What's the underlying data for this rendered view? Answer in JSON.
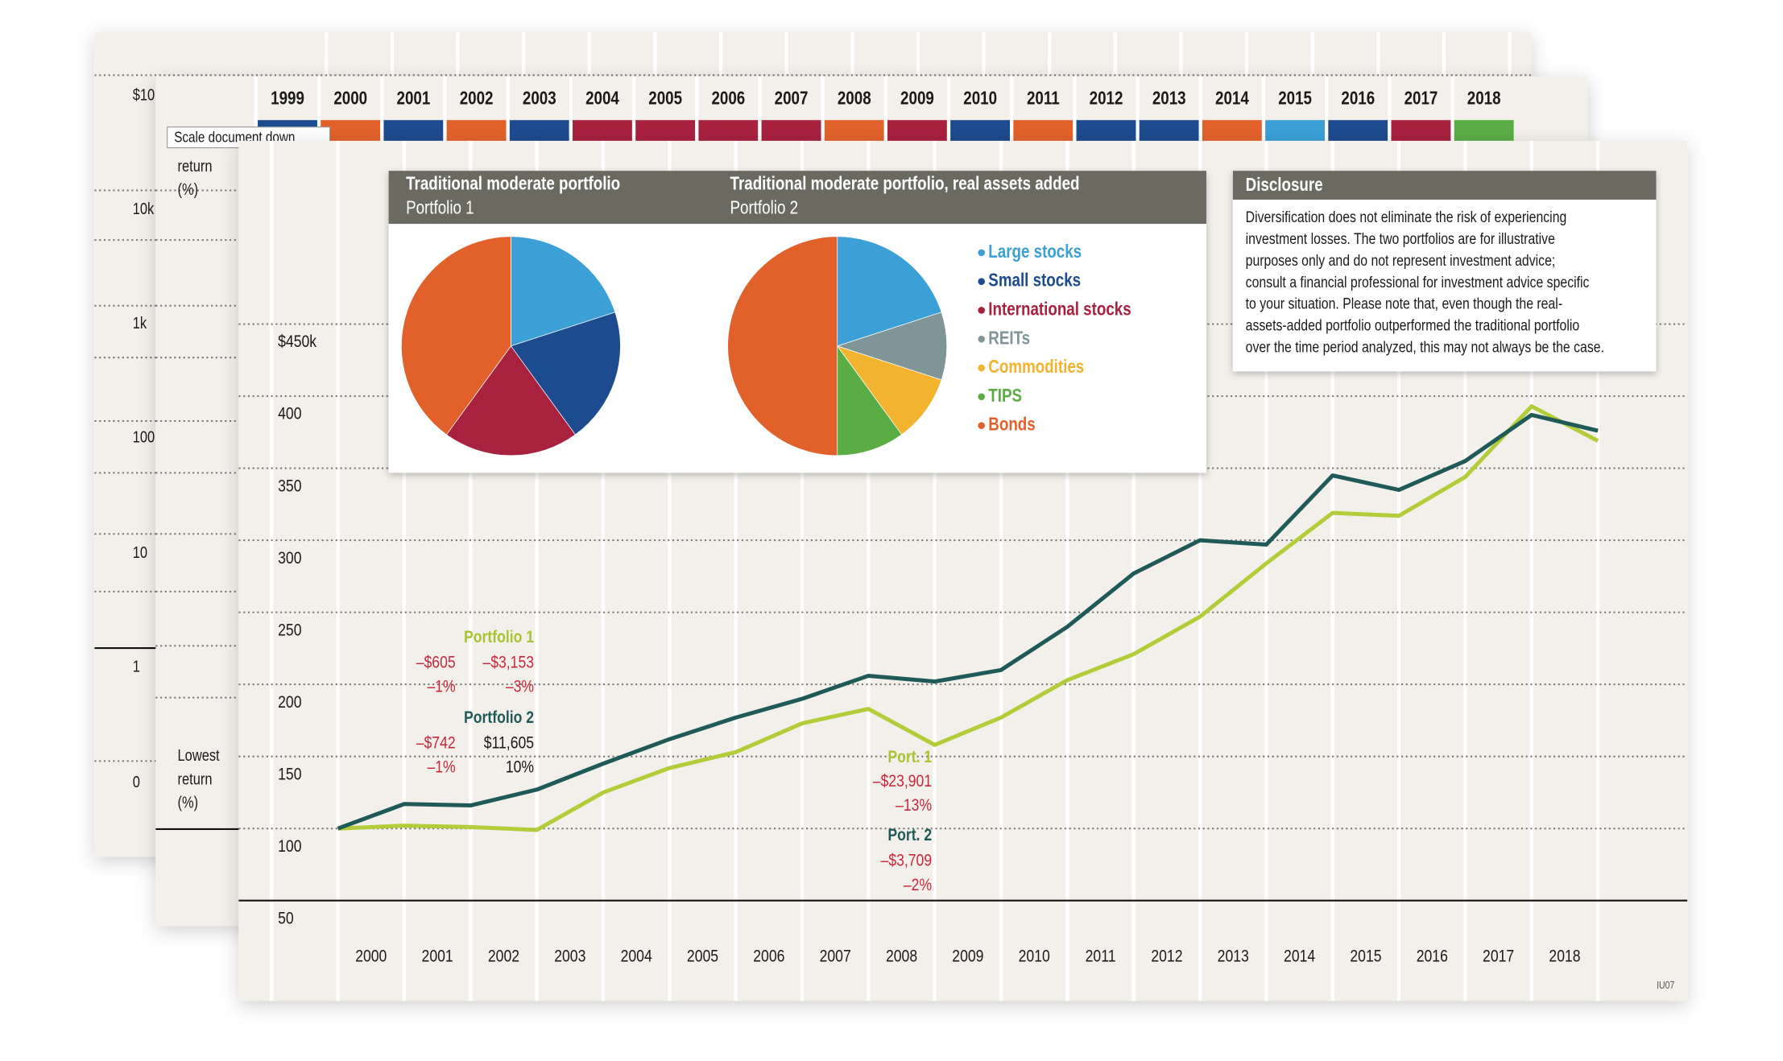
{
  "back_document": {
    "axis_labels": [
      "$10",
      "10k",
      "1k",
      "100",
      "10",
      "1",
      "0"
    ]
  },
  "middle_document": {
    "years": [
      "1999",
      "2000",
      "2001",
      "2002",
      "2003",
      "2004",
      "2005",
      "2006",
      "2007",
      "2008",
      "2009",
      "2010",
      "2011",
      "2012",
      "2013",
      "2014",
      "2015",
      "2016",
      "2017",
      "2018"
    ],
    "cell_colors": [
      "#1d4b8f",
      "#e2612b",
      "#1d4b8f",
      "#e2612b",
      "#1d4b8f",
      "#a8213f",
      "#a8213f",
      "#a8213f",
      "#a8213f",
      "#e2612b",
      "#a8213f",
      "#1d4b8f",
      "#e2612b",
      "#1d4b8f",
      "#1d4b8f",
      "#e2612b",
      "#3aa0d5",
      "#1d4b8f",
      "#a8213f",
      "#5aad45"
    ],
    "upper_label": [
      "return",
      "(%)"
    ],
    "lower_label": [
      "Lowest",
      "return",
      "(%)"
    ]
  },
  "tooltip": "Scale document down",
  "chart_data": [
    {
      "type": "line",
      "categories": [
        "2000",
        "2001",
        "2002",
        "2003",
        "2004",
        "2005",
        "2006",
        "2007",
        "2008",
        "2009",
        "2010",
        "2011",
        "2012",
        "2013",
        "2014",
        "2015",
        "2016",
        "2017",
        "2018"
      ],
      "initial_value": 100,
      "series": [
        {
          "name": "Portfolio 1",
          "color": "#b3cd3a",
          "values": [
            102,
            101,
            99,
            125,
            142,
            153,
            173,
            183,
            158,
            177,
            203,
            221,
            247,
            284,
            319,
            317,
            344,
            393,
            369
          ]
        },
        {
          "name": "Portfolio 2",
          "color": "#1f5a59",
          "values": [
            117,
            116,
            127,
            145,
            162,
            177,
            190,
            206,
            202,
            210,
            240,
            277,
            300,
            297,
            345,
            335,
            355,
            387,
            376
          ]
        }
      ],
      "ylim": [
        50,
        450
      ],
      "yticks": [
        {
          "value": 450,
          "label": "$450k"
        },
        400,
        350,
        300,
        250,
        200,
        150,
        100,
        50
      ],
      "grid": true,
      "annotations": [
        {
          "text": "–$605",
          "color": "#c8283c"
        },
        {
          "text": "–$3,153",
          "color": "#c8283c"
        },
        {
          "text": "–1%",
          "color": "#c8283c"
        },
        {
          "text": "–3%",
          "color": "#c8283c"
        },
        {
          "text": "–$742",
          "color": "#c8283c"
        },
        {
          "text": "$11,605",
          "color": "#1a1a1a"
        },
        {
          "text": "–1%",
          "color": "#c8283c"
        },
        {
          "text": "10%",
          "color": "#1a1a1a"
        },
        {
          "text": "Port. 1",
          "color": "#a9c432"
        },
        {
          "text": "–$23,901",
          "color": "#c8283c"
        },
        {
          "text": "–13%",
          "color": "#c8283c"
        },
        {
          "text": "Port. 2",
          "color": "#1f5a59"
        },
        {
          "text": "–$3,709",
          "color": "#c8283c"
        },
        {
          "text": "–2%",
          "color": "#c8283c"
        }
      ]
    },
    {
      "type": "pie",
      "title": "Traditional moderate portfolio",
      "subtitle": "Portfolio 1",
      "categories": [
        "Large stocks",
        "Small stocks",
        "International stocks",
        "Bonds"
      ],
      "values": [
        20,
        20,
        20,
        40
      ],
      "colors": [
        "#3aa0d5",
        "#1d4b8f",
        "#a8213f",
        "#e2612b"
      ]
    },
    {
      "type": "pie",
      "title": "Traditional moderate portfolio, real assets added",
      "subtitle": "Portfolio 2",
      "categories": [
        "Large stocks",
        "REITs",
        "Commodities",
        "TIPS",
        "Bonds"
      ],
      "values": [
        20,
        10,
        10,
        10,
        50
      ],
      "colors": [
        "#3aa0d5",
        "#7f9597",
        "#f2b32e",
        "#5aad45",
        "#e2612b"
      ]
    }
  ],
  "legend": [
    {
      "name": "Large stocks",
      "color": "#3aa0d5"
    },
    {
      "name": "Small stocks",
      "color": "#1d4b8f"
    },
    {
      "name": "International stocks",
      "color": "#a8213f"
    },
    {
      "name": "REITs",
      "color": "#7f9597"
    },
    {
      "name": "Commodities",
      "color": "#f2b32e"
    },
    {
      "name": "TIPS",
      "color": "#5aad45"
    },
    {
      "name": "Bonds",
      "color": "#e2612b"
    }
  ],
  "disclosure": {
    "title": "Disclosure",
    "lines": [
      "Diversification does not eliminate the risk of experiencing",
      "investment losses. The two portfolios are for illustrative",
      "purposes only and do not represent investment advice;",
      "consult a financial professional for investment advice specific",
      "to your situation. Please note that, even though the real-",
      "assets-added portfolio outperformed the traditional portfolio",
      "over the time period analyzed, this may not always be the case."
    ]
  },
  "footer_code": "IU07"
}
